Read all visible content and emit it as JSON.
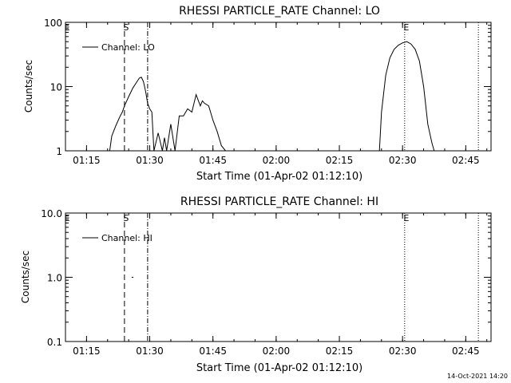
{
  "footer": {
    "timestamp": "14-Oct-2021 14:20"
  },
  "chart_data": [
    {
      "type": "line",
      "title": "RHESSI PARTICLE_RATE Channel: LO",
      "xlabel": "Start Time (01-Apr-02 01:12:10)",
      "ylabel": "Counts/sec",
      "xscale": "time",
      "yscale": "log",
      "xlim": [
        "01:10",
        "02:51"
      ],
      "ylim": [
        1,
        100
      ],
      "x_ticks": [
        "01:15",
        "01:30",
        "01:45",
        "02:00",
        "02:15",
        "02:30",
        "02:45"
      ],
      "y_ticks": [
        "1",
        "10",
        "100"
      ],
      "legend": {
        "entries": [
          "Channel: LO"
        ],
        "position": "top-left"
      },
      "markers": [
        {
          "label": "E",
          "time": "01:10",
          "style": "none"
        },
        {
          "label": "S",
          "time": "01:24",
          "style": "dashed"
        },
        {
          "label": "",
          "time": "01:29.5",
          "style": "dash-dot"
        },
        {
          "label": "E",
          "time": "02:30.5",
          "style": "dotted"
        },
        {
          "label": "",
          "time": "02:48",
          "style": "dotted"
        }
      ],
      "series": [
        {
          "name": "Channel: LO",
          "x": [
            "01:20.5",
            "01:21",
            "01:22",
            "01:23",
            "01:23.5",
            "01:24",
            "01:25",
            "01:26",
            "01:27",
            "01:27.5",
            "01:28",
            "01:28.5",
            "01:29",
            "01:29.5",
            "01:30",
            "01:30.5",
            "01:31",
            "01:31",
            "01:32",
            "01:33",
            "01:33.5",
            "01:34",
            "01:35",
            "01:36",
            "01:37",
            "01:38",
            "01:39",
            "01:40",
            "01:41",
            "01:42",
            "01:42.5",
            "01:43",
            "01:44",
            "01:45",
            "01:46",
            "01:47",
            "01:48",
            "01:48.5",
            "02:24.5",
            "02:25",
            "02:26",
            "02:27",
            "02:28",
            "02:29",
            "02:30",
            "02:31",
            "02:32",
            "02:33",
            "02:34",
            "02:35",
            "02:36",
            "02:37",
            "02:37.5"
          ],
          "y": [
            1,
            1.7,
            2.5,
            3.5,
            4,
            5,
            7,
            9.5,
            12,
            13.5,
            14,
            12,
            8.5,
            5.5,
            4.5,
            4,
            1,
            1,
            1.9,
            1,
            1.6,
            1,
            2.6,
            1,
            3.5,
            3.5,
            4.5,
            4,
            7.5,
            5,
            6,
            5.5,
            5,
            3,
            2,
            1.2,
            1,
            1,
            1,
            4,
            15,
            28,
            38,
            44,
            48,
            50,
            46,
            38,
            25,
            10,
            2.6,
            1.3,
            1
          ]
        }
      ]
    },
    {
      "type": "line",
      "title": "RHESSI PARTICLE_RATE Channel: HI",
      "xlabel": "Start Time (01-Apr-02 01:12:10)",
      "ylabel": "Counts/sec",
      "xscale": "time",
      "yscale": "log",
      "xlim": [
        "01:10",
        "02:51"
      ],
      "ylim": [
        0.1,
        10
      ],
      "x_ticks": [
        "01:15",
        "01:30",
        "01:45",
        "02:00",
        "02:15",
        "02:30",
        "02:45"
      ],
      "y_ticks": [
        "0.1",
        "1.0",
        "10.0"
      ],
      "legend": {
        "entries": [
          "Channel: HI"
        ],
        "position": "top-left"
      },
      "markers": [
        {
          "label": "E",
          "time": "01:10",
          "style": "none"
        },
        {
          "label": "S",
          "time": "01:24",
          "style": "dashed"
        },
        {
          "label": "",
          "time": "01:29.5",
          "style": "dash-dot"
        },
        {
          "label": "E",
          "time": "02:30.5",
          "style": "dotted"
        },
        {
          "label": "",
          "time": "02:48",
          "style": "dotted"
        }
      ],
      "series": [
        {
          "name": "Channel: HI",
          "x": [
            "01:25.7",
            "01:26.1"
          ],
          "y": [
            1,
            1
          ]
        }
      ]
    }
  ]
}
